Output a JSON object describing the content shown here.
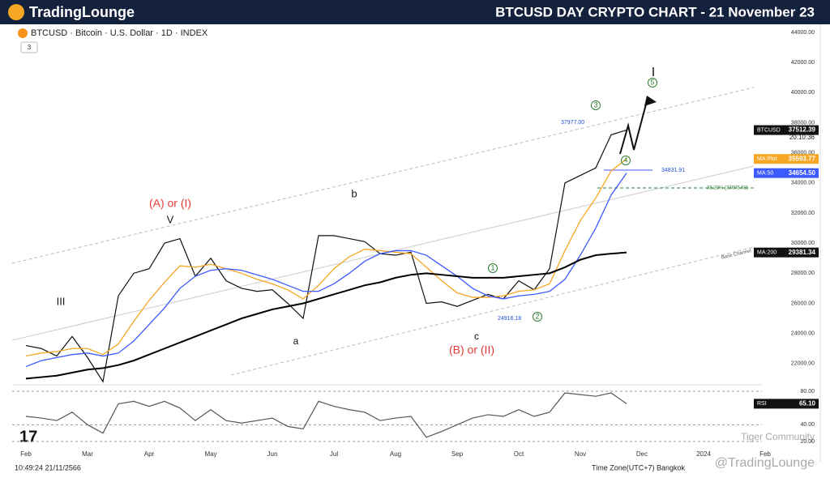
{
  "header": {
    "logo": "TradingLounge",
    "title": "BTCUSD DAY CRYPTO CHART - 21 November 23"
  },
  "symbol": {
    "label": "BTCUSD · Bitcoin · U.S. Dollar · 1D · INDEX",
    "counter": "3"
  },
  "footer": {
    "time": "10:49:24 21/11/2566",
    "timezone": "Time Zone(UTC+7) Bangkok",
    "watermark1": "Tiger Community",
    "watermark2": "@TradingLounge"
  },
  "countdown": "20:10:36",
  "annotations": [
    {
      "text": "(A) or (I)",
      "color": "#e53935"
    },
    {
      "text": "V",
      "color": "#111"
    },
    {
      "text": "III",
      "color": "#111"
    },
    {
      "text": "b",
      "color": "#111"
    },
    {
      "text": "a",
      "color": "#111"
    },
    {
      "text": "c",
      "color": "#111"
    },
    {
      "text": "(B) or (II)",
      "color": "#e53935"
    },
    {
      "text": "I",
      "color": "#111"
    },
    {
      "text": "1",
      "color": "#2e7d32"
    },
    {
      "text": "2",
      "color": "#2e7d32"
    },
    {
      "text": "3",
      "color": "#2e7d32"
    },
    {
      "text": "4",
      "color": "#2e7d32"
    },
    {
      "text": "5",
      "color": "#2e7d32"
    },
    {
      "text": "37977.00",
      "color": "#1e4fd8"
    },
    {
      "text": "34831.91",
      "color": "#1e4fd8"
    },
    {
      "text": "24916.18",
      "color": "#1e4fd8"
    },
    {
      "text": "38.20% (33605.68)",
      "color": "#2e7d32"
    },
    {
      "text": "Base Channel",
      "color": "#555"
    }
  ],
  "chart_data": [
    {
      "type": "line",
      "categories": [
        "Feb",
        null,
        null,
        null,
        "Mar",
        null,
        null,
        null,
        "Apr",
        null,
        null,
        null,
        "May",
        null,
        null,
        null,
        "Jun",
        null,
        null,
        null,
        "Jul",
        null,
        null,
        null,
        "Aug",
        null,
        null,
        null,
        "Sep",
        null,
        null,
        null,
        "Oct",
        null,
        null,
        null,
        "Nov",
        null,
        null,
        null,
        "Dec",
        null,
        null,
        null,
        "2024",
        null,
        null,
        null,
        "Feb",
        null,
        null,
        null
      ],
      "series": [
        {
          "name": "BTCUSD",
          "color": "#111111",
          "tag": "37512.39",
          "values": [
            23200,
            23000,
            22500,
            23800,
            22400,
            20800,
            26500,
            28000,
            28300,
            30000,
            30300,
            27800,
            29000,
            27500,
            27000,
            26800,
            26900,
            26000,
            25000,
            30500,
            30500,
            30300,
            30100,
            29300,
            29200,
            29400,
            26000,
            26100,
            25800,
            26200,
            26600,
            26300,
            27500,
            26900,
            28300,
            34000,
            34500,
            35000,
            37200,
            37512.39,
            null,
            null,
            null,
            null,
            null,
            null,
            null,
            null,
            null,
            null,
            null,
            null
          ]
        },
        {
          "name": "MA:Plot",
          "color": "#f5a623",
          "tag": "35593.77",
          "values": [
            22500,
            22700,
            22800,
            23000,
            23000,
            22600,
            23300,
            24800,
            26200,
            27400,
            28500,
            28400,
            28600,
            28300,
            28000,
            27600,
            27300,
            26900,
            26300,
            27200,
            28300,
            29100,
            29600,
            29500,
            29400,
            29300,
            28400,
            27500,
            26700,
            26400,
            26400,
            26500,
            26800,
            26900,
            27300,
            29500,
            31500,
            33000,
            34800,
            35593.77,
            null,
            null,
            null,
            null,
            null,
            null,
            null,
            null,
            null,
            null,
            null,
            null
          ]
        },
        {
          "name": "MA:50",
          "color": "#3d5afe",
          "tag": "34654.50",
          "values": [
            21800,
            22200,
            22400,
            22600,
            22700,
            22500,
            22700,
            23500,
            24600,
            25700,
            27000,
            27800,
            28200,
            28300,
            28200,
            27900,
            27600,
            27200,
            26800,
            26800,
            27300,
            28000,
            28800,
            29300,
            29500,
            29500,
            29200,
            28500,
            27800,
            27000,
            26500,
            26300,
            26500,
            26600,
            26800,
            27600,
            29200,
            31000,
            33200,
            34654.5,
            null,
            null,
            null,
            null,
            null,
            null,
            null,
            null,
            null,
            null,
            null,
            null
          ]
        },
        {
          "name": "MA:200",
          "color": "#000000",
          "tag": "29381.34",
          "values": [
            21000,
            21100,
            21200,
            21400,
            21600,
            21700,
            21900,
            22200,
            22600,
            23000,
            23400,
            23800,
            24200,
            24600,
            25000,
            25300,
            25600,
            25800,
            26000,
            26300,
            26600,
            26900,
            27200,
            27400,
            27700,
            27900,
            28000,
            27900,
            27800,
            27700,
            27700,
            27700,
            27800,
            27900,
            28000,
            28400,
            28900,
            29200,
            29300,
            29381.34,
            null,
            null,
            null,
            null,
            null,
            null,
            null,
            null,
            null,
            null,
            null,
            null
          ]
        }
      ],
      "ylim": [
        20000,
        44000
      ],
      "yticks": [
        {
          "value": 22000,
          "label": "22000.00"
        },
        {
          "value": 24000,
          "label": "24000.00"
        },
        {
          "value": 26000,
          "label": "26000.00"
        },
        {
          "value": 28000,
          "label": "28000.00"
        },
        {
          "value": 30000,
          "label": "30000.00"
        },
        {
          "value": 32000,
          "label": "32000.00"
        },
        {
          "value": 34000,
          "label": "34000.00"
        },
        {
          "value": 36000,
          "label": "36000.00"
        },
        {
          "value": 38000,
          "label": "38000.00"
        },
        {
          "value": 40000,
          "label": "40000.00"
        },
        {
          "value": 42000,
          "label": "42000.00"
        },
        {
          "value": 44000,
          "label": "44000.00"
        }
      ]
    },
    {
      "type": "line",
      "series": [
        {
          "name": "RSI",
          "color": "#555555",
          "tag": "65.10",
          "values": [
            50,
            48,
            45,
            55,
            40,
            30,
            65,
            68,
            62,
            68,
            60,
            45,
            58,
            45,
            42,
            45,
            48,
            38,
            35,
            68,
            62,
            58,
            55,
            45,
            48,
            50,
            25,
            32,
            40,
            48,
            52,
            50,
            58,
            50,
            55,
            78,
            76,
            74,
            78,
            65.1,
            null,
            null,
            null,
            null,
            null,
            null,
            null,
            null,
            null,
            null,
            null,
            null
          ]
        }
      ],
      "ylim": [
        20,
        80
      ],
      "yticks": [
        {
          "value": 20,
          "label": "20.00"
        },
        {
          "value": 40,
          "label": "40.00"
        },
        {
          "value": 80,
          "label": "80.00"
        }
      ]
    }
  ]
}
